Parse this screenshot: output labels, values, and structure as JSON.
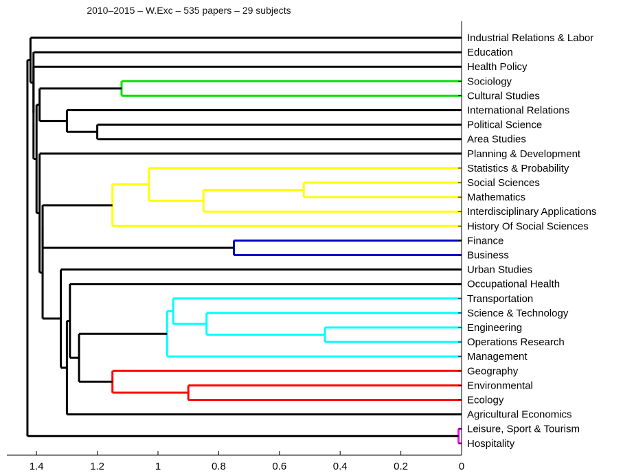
{
  "title": "2010–2015 – W.Exc – 535 papers – 29 subjects",
  "colors": {
    "black": "#000000",
    "green": "#00e000",
    "yellow": "#ffff00",
    "blue": "#0000c8",
    "cyan": "#00ffff",
    "red": "#ff0000",
    "magenta": "#ff00ff"
  },
  "chart_data": {
    "type": "dendrogram",
    "orientation": "leaves-right",
    "x_axis": {
      "range": [
        1.5,
        0
      ],
      "ticks": [
        1.4,
        1.2,
        1,
        0.8,
        0.6,
        0.4,
        0.2,
        0
      ],
      "tick_labels": [
        "1.4",
        "1.2",
        "1",
        "0.8",
        "0.6",
        "0.4",
        "0.2",
        "0"
      ]
    },
    "leaves": [
      "Industrial Relations & Labor",
      "Education",
      "Health Policy",
      "Sociology",
      "Cultural Studies",
      "International Relations",
      "Political Science",
      "Area Studies",
      "Planning & Development",
      "Statistics & Probability",
      "Social Sciences",
      "Mathematics",
      "Interdisciplinary Applications",
      "History Of Social Sciences",
      "Finance",
      "Business",
      "Urban Studies",
      "Occupational Health",
      "Transportation",
      "Science & Technology",
      "Engineering",
      "Operations Research",
      "Management",
      "Geography",
      "Environmental",
      "Ecology",
      "Agricultural Economics",
      "Leisure, Sport & Tourism",
      "Hospitality"
    ],
    "merges": [
      {
        "id": "n1",
        "a": "L3",
        "b": "L4",
        "height": 1.12,
        "color": "green"
      },
      {
        "id": "n2",
        "a": "L6",
        "b": "L7",
        "height": 1.2,
        "color": "black"
      },
      {
        "id": "n3",
        "a": "L5",
        "b": "n2",
        "height": 1.3,
        "color": "black"
      },
      {
        "id": "n4",
        "a": "n1",
        "b": "n3",
        "height": 1.39,
        "color": "black"
      },
      {
        "id": "n5",
        "a": "L10",
        "b": "L11",
        "height": 0.52,
        "color": "yellow"
      },
      {
        "id": "n6",
        "a": "n5",
        "b": "L12",
        "height": 0.85,
        "color": "yellow"
      },
      {
        "id": "n7",
        "a": "L9",
        "b": "n6",
        "height": 1.03,
        "color": "yellow"
      },
      {
        "id": "n8",
        "a": "n7",
        "b": "L13",
        "height": 1.15,
        "color": "yellow"
      },
      {
        "id": "n9",
        "a": "L14",
        "b": "L15",
        "height": 0.75,
        "color": "blue"
      },
      {
        "id": "n10",
        "a": "n8",
        "b": "n9",
        "height": 1.38,
        "color": "black"
      },
      {
        "id": "n11",
        "a": "L20",
        "b": "L21",
        "height": 0.45,
        "color": "cyan"
      },
      {
        "id": "n12",
        "a": "L19",
        "b": "n11",
        "height": 0.84,
        "color": "cyan"
      },
      {
        "id": "n13",
        "a": "L18",
        "b": "n12",
        "height": 0.95,
        "color": "cyan"
      },
      {
        "id": "n14",
        "a": "n13",
        "b": "L22",
        "height": 0.97,
        "color": "cyan"
      },
      {
        "id": "n15",
        "a": "L24",
        "b": "L25",
        "height": 0.9,
        "color": "red"
      },
      {
        "id": "n16",
        "a": "L23",
        "b": "n15",
        "height": 1.15,
        "color": "red"
      },
      {
        "id": "n17",
        "a": "n14",
        "b": "n16",
        "height": 1.26,
        "color": "black"
      },
      {
        "id": "n18",
        "a": "L17",
        "b": "n17",
        "height": 1.29,
        "color": "black"
      },
      {
        "id": "n19",
        "a": "n18",
        "b": "L26",
        "height": 1.3,
        "color": "black"
      },
      {
        "id": "n20",
        "a": "L16",
        "b": "n19",
        "height": 1.32,
        "color": "black"
      },
      {
        "id": "n21",
        "a": "n10",
        "b": "n20",
        "height": 1.38,
        "color": "black"
      },
      {
        "id": "n22",
        "a": "L8",
        "b": "n21",
        "height": 1.39,
        "color": "black"
      },
      {
        "id": "n23",
        "a": "n4",
        "b": "n22",
        "height": 1.4,
        "color": "black"
      },
      {
        "id": "n24",
        "a": "L2",
        "b": "n23",
        "height": 1.41,
        "color": "black"
      },
      {
        "id": "n25",
        "a": "L1",
        "b": "n24",
        "height": 1.41,
        "color": "black"
      },
      {
        "id": "n26",
        "a": "L0",
        "b": "n25",
        "height": 1.42,
        "color": "black"
      },
      {
        "id": "n27",
        "a": "L27",
        "b": "L28",
        "height": 0.01,
        "color": "magenta"
      },
      {
        "id": "n28",
        "a": "n26",
        "b": "n27",
        "height": 1.43,
        "color": "black"
      }
    ]
  }
}
